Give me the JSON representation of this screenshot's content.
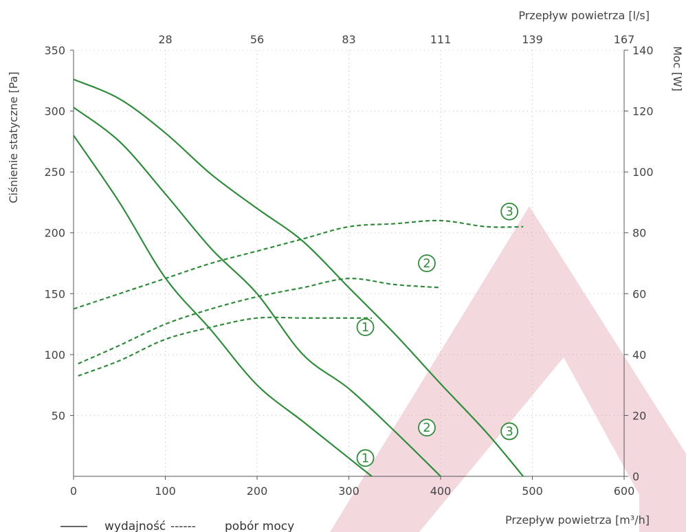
{
  "chart_data": {
    "type": "line",
    "colors": {
      "series": "#2e8b3a",
      "axis": "#555555",
      "grid": "#b8b8b8",
      "watermark": "#e9b9c2"
    },
    "x": {
      "label": "Przepływ powietrza [m³/h]",
      "range": [
        0,
        600
      ],
      "ticks": [
        "0",
        "100",
        "200",
        "300",
        "400",
        "500",
        "600"
      ]
    },
    "x_top": {
      "label": "Przepływ powietrza [l/s]",
      "ticks": [
        "28",
        "56",
        "83",
        "111",
        "139",
        "167"
      ],
      "tick_positions_m3h": [
        100,
        200,
        300,
        400,
        500,
        600
      ]
    },
    "y_left": {
      "label": "Ciśnienie statyczne [Pa]",
      "range": [
        0,
        350
      ],
      "ticks": [
        "50",
        "100",
        "150",
        "200",
        "250",
        "300",
        "350"
      ]
    },
    "y_right": {
      "label": "Moc [W]",
      "range": [
        0,
        140
      ],
      "ticks": [
        "0",
        "20",
        "40",
        "60",
        "80",
        "100",
        "120",
        "140"
      ]
    },
    "legend": {
      "solid": "wydajność",
      "dashed": "pobór mocy",
      "dashes": "------",
      "position": "bottom-left"
    },
    "series": [
      {
        "name": "1",
        "kind": "wydajność",
        "axis": "left",
        "x": [
          0,
          50,
          100,
          150,
          200,
          250,
          300,
          325
        ],
        "y": [
          280,
          225,
          163,
          120,
          75,
          45,
          15,
          0
        ]
      },
      {
        "name": "2",
        "kind": "wydajność",
        "axis": "left",
        "x": [
          0,
          50,
          100,
          150,
          200,
          250,
          300,
          350,
          400
        ],
        "y": [
          303,
          275,
          232,
          187,
          150,
          100,
          72,
          37,
          0
        ]
      },
      {
        "name": "3",
        "kind": "wydajność",
        "axis": "left",
        "x": [
          0,
          50,
          100,
          150,
          200,
          250,
          300,
          350,
          400,
          450,
          490
        ],
        "y": [
          326,
          310,
          282,
          248,
          220,
          193,
          155,
          117,
          76,
          36,
          0
        ]
      },
      {
        "name": "1",
        "kind": "pobór mocy",
        "axis": "right",
        "x": [
          5,
          50,
          100,
          150,
          200,
          250,
          300,
          325
        ],
        "y": [
          33,
          38,
          45,
          49,
          52,
          52,
          52,
          52
        ]
      },
      {
        "name": "2",
        "kind": "pobór mocy",
        "axis": "right",
        "x": [
          5,
          50,
          100,
          150,
          200,
          250,
          300,
          350,
          400
        ],
        "y": [
          37,
          43,
          50,
          55,
          59,
          62,
          65,
          63,
          62
        ]
      },
      {
        "name": "3",
        "kind": "pobór mocy",
        "axis": "right",
        "x": [
          0,
          50,
          100,
          150,
          200,
          250,
          300,
          350,
          400,
          450,
          490
        ],
        "y": [
          55,
          60,
          65,
          70,
          74,
          78,
          82,
          83,
          84,
          82,
          82
        ]
      }
    ],
    "markers": [
      {
        "text": "1",
        "x": 318,
        "y": 15,
        "axis": "left"
      },
      {
        "text": "2",
        "x": 385,
        "y": 40,
        "axis": "left"
      },
      {
        "text": "3",
        "x": 475,
        "y": 37,
        "axis": "left"
      },
      {
        "text": "1",
        "x": 318,
        "y": 49,
        "axis": "right"
      },
      {
        "text": "2",
        "x": 385,
        "y": 70,
        "axis": "right"
      },
      {
        "text": "3",
        "x": 475,
        "y": 87,
        "axis": "right"
      }
    ]
  }
}
